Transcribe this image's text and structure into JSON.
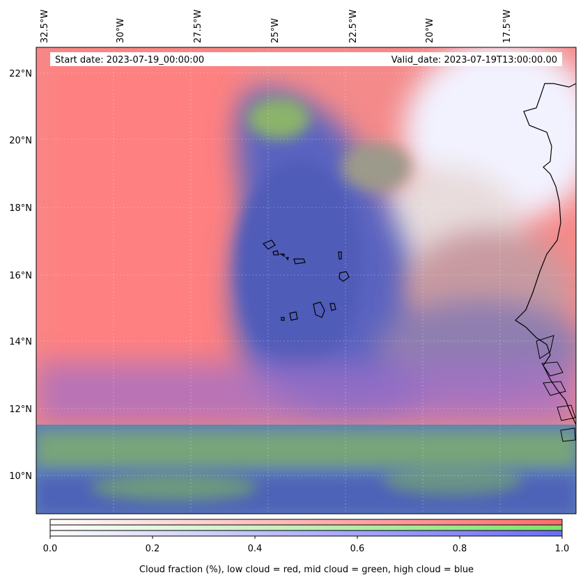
{
  "map": {
    "start_date": "Start date: 2023-07-19_00:00:00",
    "valid_date": "Valid_date: 2023-07-19T13:00:00.00",
    "lon_ticks": [
      "32.5°W",
      "30°W",
      "27.5°W",
      "25°W",
      "22.5°W",
      "20°W",
      "17.5°W"
    ],
    "lat_ticks": [
      "22°N",
      "20°N",
      "18°N",
      "16°N",
      "14°N",
      "12°N",
      "10°N"
    ]
  },
  "colorbar": {
    "ticks": [
      "0.0",
      "0.2",
      "0.4",
      "0.6",
      "0.8",
      "1.0"
    ],
    "label": "Cloud fraction (%), low cloud = red, mid cloud = green, high cloud = blue",
    "colors": {
      "low": "#ff6b6b",
      "mid": "#7ee36d",
      "high": "#6b6bff"
    }
  }
}
